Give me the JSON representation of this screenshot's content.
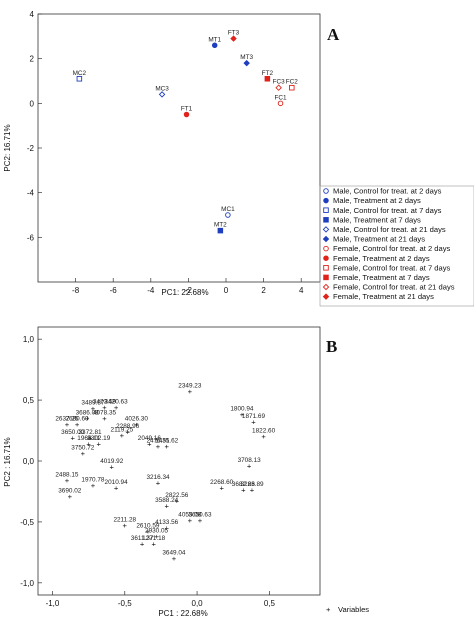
{
  "chart_data": [
    {
      "panel": "A",
      "type": "scatter",
      "xlabel": "PC1: 22.68%",
      "ylabel": "PC2: 16.71%",
      "xlim": [
        -10,
        5
      ],
      "ylim": [
        -8,
        4
      ],
      "xticks": [
        "-8",
        "-6",
        "-4",
        "-2",
        "0",
        "2",
        "4"
      ],
      "yticks": [
        "4",
        "2",
        "0",
        "-2",
        "-4",
        "-6"
      ],
      "legend_position": "right",
      "legend": [
        {
          "name": "Male, Control for treat. at 2 days",
          "marker": "circle-open",
          "color": "#1f3fbf"
        },
        {
          "name": "Male, Treatment at 2 days",
          "marker": "circle-filled",
          "color": "#1f3fbf"
        },
        {
          "name": "Male, Control for treat. at 7 days",
          "marker": "square-open",
          "color": "#1f3fbf"
        },
        {
          "name": "Male, Treatment at 7 days",
          "marker": "square-filled",
          "color": "#1f3fbf"
        },
        {
          "name": "Male, Control for treat. at 21 days",
          "marker": "diamond-open",
          "color": "#1f3fbf"
        },
        {
          "name": "Male, Treatment at 21 days",
          "marker": "diamond-filled",
          "color": "#1f3fbf"
        },
        {
          "name": "Female, Control for treat. at 2 days",
          "marker": "circle-open",
          "color": "#e0231b"
        },
        {
          "name": "Female, Treatment at 2 days",
          "marker": "circle-filled",
          "color": "#e0231b"
        },
        {
          "name": "Female, Control for treat. at 7 days",
          "marker": "square-open",
          "color": "#e0231b"
        },
        {
          "name": "Female, Treatment at 7 days",
          "marker": "square-filled",
          "color": "#e0231b"
        },
        {
          "name": "Female, Control for treat. at 21 days",
          "marker": "diamond-open",
          "color": "#e0231b"
        },
        {
          "name": "Female, Treatment at 21 days",
          "marker": "diamond-filled",
          "color": "#e0231b"
        }
      ],
      "points": [
        {
          "label": "MC1",
          "x": 0.1,
          "y": -5.0,
          "marker": "circle-open",
          "color": "#1f3fbf"
        },
        {
          "label": "MT1",
          "x": -0.6,
          "y": 2.6,
          "marker": "circle-filled",
          "color": "#1f3fbf"
        },
        {
          "label": "MC2",
          "x": -7.8,
          "y": 1.1,
          "marker": "square-open",
          "color": "#1f3fbf"
        },
        {
          "label": "MT2",
          "x": -0.3,
          "y": -5.7,
          "marker": "square-filled",
          "color": "#1f3fbf"
        },
        {
          "label": "MC3",
          "x": -3.4,
          "y": 0.4,
          "marker": "diamond-open",
          "color": "#1f3fbf"
        },
        {
          "label": "MT3",
          "x": 1.1,
          "y": 1.8,
          "marker": "diamond-filled",
          "color": "#1f3fbf"
        },
        {
          "label": "FC1",
          "x": 2.9,
          "y": 0.0,
          "marker": "circle-open",
          "color": "#e0231b"
        },
        {
          "label": "FT1",
          "x": -2.1,
          "y": -0.5,
          "marker": "circle-filled",
          "color": "#e0231b"
        },
        {
          "label": "FC2",
          "x": 3.5,
          "y": 0.7,
          "marker": "square-open",
          "color": "#e0231b"
        },
        {
          "label": "FT2",
          "x": 2.2,
          "y": 1.1,
          "marker": "square-filled",
          "color": "#e0231b"
        },
        {
          "label": "FC3",
          "x": 2.8,
          "y": 0.7,
          "marker": "diamond-open",
          "color": "#e0231b"
        },
        {
          "label": "FT3",
          "x": 0.4,
          "y": 2.9,
          "marker": "diamond-filled",
          "color": "#e0231b"
        }
      ]
    },
    {
      "panel": "B",
      "type": "scatter",
      "xlabel": "PC1 : 22.68%",
      "ylabel": "PC2 : 16.71%",
      "xlim": [
        -1.1,
        0.85
      ],
      "ylim": [
        -1.1,
        1.1
      ],
      "xticks": [
        "-1,0",
        "-0,5",
        "0,0",
        "0,5"
      ],
      "yticks": [
        "1,0",
        "0,5",
        "0,0",
        "-0,5",
        "-1,0"
      ],
      "legend": [
        {
          "name": "Variables",
          "marker": "plus"
        }
      ],
      "points": [
        {
          "label": "2349.23",
          "x": -0.05,
          "y": 0.57
        },
        {
          "label": "3489.87",
          "x": -0.72,
          "y": 0.43
        },
        {
          "label": "3473.59",
          "x": -0.64,
          "y": 0.44
        },
        {
          "label": "3420.63",
          "x": -0.56,
          "y": 0.44
        },
        {
          "label": "3686.08",
          "x": -0.76,
          "y": 0.35
        },
        {
          "label": "4078.35",
          "x": -0.64,
          "y": 0.35
        },
        {
          "label": "2637.25",
          "x": -0.9,
          "y": 0.3
        },
        {
          "label": "2680.60",
          "x": -0.83,
          "y": 0.3
        },
        {
          "label": "4026.30",
          "x": -0.42,
          "y": 0.3
        },
        {
          "label": "2288.96",
          "x": -0.48,
          "y": 0.24
        },
        {
          "label": "2119.25",
          "x": -0.52,
          "y": 0.21
        },
        {
          "label": "3650.00",
          "x": -0.86,
          "y": 0.19
        },
        {
          "label": "3372.81",
          "x": -0.74,
          "y": 0.19
        },
        {
          "label": "1966.11",
          "x": -0.75,
          "y": 0.14
        },
        {
          "label": "3302.19",
          "x": -0.68,
          "y": 0.14
        },
        {
          "label": "2049.16",
          "x": -0.33,
          "y": 0.14
        },
        {
          "label": "2476.51",
          "x": -0.27,
          "y": 0.12
        },
        {
          "label": "1435.62",
          "x": -0.21,
          "y": 0.12
        },
        {
          "label": "3750.72",
          "x": -0.79,
          "y": 0.06
        },
        {
          "label": "1800.94",
          "x": 0.31,
          "y": 0.38
        },
        {
          "label": "1871.69",
          "x": 0.39,
          "y": 0.32
        },
        {
          "label": "1822.60",
          "x": 0.46,
          "y": 0.2
        },
        {
          "label": "3708.13",
          "x": 0.36,
          "y": -0.04
        },
        {
          "label": "4019.92",
          "x": -0.59,
          "y": -0.05
        },
        {
          "label": "2488.15",
          "x": -0.9,
          "y": -0.16
        },
        {
          "label": "3216.34",
          "x": -0.27,
          "y": -0.18
        },
        {
          "label": "1970.78",
          "x": -0.72,
          "y": -0.2
        },
        {
          "label": "2010.94",
          "x": -0.56,
          "y": -0.22
        },
        {
          "label": "2268.60",
          "x": 0.17,
          "y": -0.22
        },
        {
          "label": "3682.66",
          "x": 0.32,
          "y": -0.24
        },
        {
          "label": "3223.89",
          "x": 0.38,
          "y": -0.24
        },
        {
          "label": "3690.02",
          "x": -0.88,
          "y": -0.29
        },
        {
          "label": "2822.56",
          "x": -0.14,
          "y": -0.33
        },
        {
          "label": "3588.24",
          "x": -0.21,
          "y": -0.37
        },
        {
          "label": "4055.08",
          "x": -0.05,
          "y": -0.49
        },
        {
          "label": "3650.63",
          "x": 0.02,
          "y": -0.49
        },
        {
          "label": "2211.28",
          "x": -0.5,
          "y": -0.53
        },
        {
          "label": "4133.56",
          "x": -0.21,
          "y": -0.55
        },
        {
          "label": "2610.59",
          "x": -0.34,
          "y": -0.58
        },
        {
          "label": "2930.05",
          "x": -0.28,
          "y": -0.62
        },
        {
          "label": "3611.37",
          "x": -0.38,
          "y": -0.68
        },
        {
          "label": "1271.18",
          "x": -0.3,
          "y": -0.68
        },
        {
          "label": "3649.04",
          "x": -0.16,
          "y": -0.8
        }
      ]
    }
  ]
}
